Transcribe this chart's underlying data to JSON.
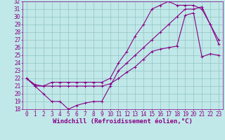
{
  "xlabel": "Windchill (Refroidissement éolien,°C)",
  "bg_color": "#c0e8e8",
  "grid_color": "#88bbbb",
  "line_color": "#880088",
  "spine_color": "#880088",
  "xlim": [
    -0.5,
    23.5
  ],
  "ylim": [
    18,
    32
  ],
  "xticks": [
    0,
    1,
    2,
    3,
    4,
    5,
    6,
    7,
    8,
    9,
    10,
    11,
    12,
    13,
    14,
    15,
    16,
    17,
    18,
    19,
    20,
    21,
    22,
    23
  ],
  "yticks": [
    18,
    19,
    20,
    21,
    22,
    23,
    24,
    25,
    26,
    27,
    28,
    29,
    30,
    31,
    32
  ],
  "line1_x": [
    0,
    1,
    2,
    3,
    4,
    5,
    6,
    7,
    8,
    9,
    10,
    11,
    12,
    13,
    14,
    15,
    16,
    17,
    18,
    19,
    20,
    21,
    22,
    23
  ],
  "line1_y": [
    22,
    21,
    20,
    19,
    19,
    18,
    18.5,
    18.8,
    19,
    19,
    21,
    23,
    24,
    25,
    26,
    27,
    28,
    29,
    30,
    31,
    31,
    31.3,
    29,
    26.5
  ],
  "line2_x": [
    0,
    1,
    2,
    3,
    4,
    5,
    6,
    7,
    8,
    9,
    10,
    11,
    12,
    13,
    14,
    15,
    16,
    17,
    18,
    19,
    20,
    21,
    22,
    23
  ],
  "line2_y": [
    22,
    21.2,
    21,
    21,
    21,
    21,
    21,
    21,
    21,
    21,
    21.3,
    22,
    22.8,
    23.5,
    24.5,
    25.5,
    25.8,
    26,
    26.2,
    30.2,
    30.5,
    24.8,
    25.2,
    25
  ],
  "line3_x": [
    0,
    1,
    2,
    3,
    4,
    5,
    6,
    7,
    8,
    9,
    10,
    11,
    12,
    13,
    14,
    15,
    16,
    17,
    18,
    19,
    20,
    21,
    22,
    23
  ],
  "line3_y": [
    22,
    21,
    21,
    21.5,
    21.5,
    21.5,
    21.5,
    21.5,
    21.5,
    21.5,
    22,
    24,
    25.5,
    27.5,
    29,
    31,
    31.5,
    32,
    31.5,
    31.5,
    31.5,
    31,
    29,
    27
  ],
  "fontsize_xlabel": 6.5,
  "tick_fontsize": 5.5,
  "linewidth": 0.8,
  "markersize": 2.5
}
